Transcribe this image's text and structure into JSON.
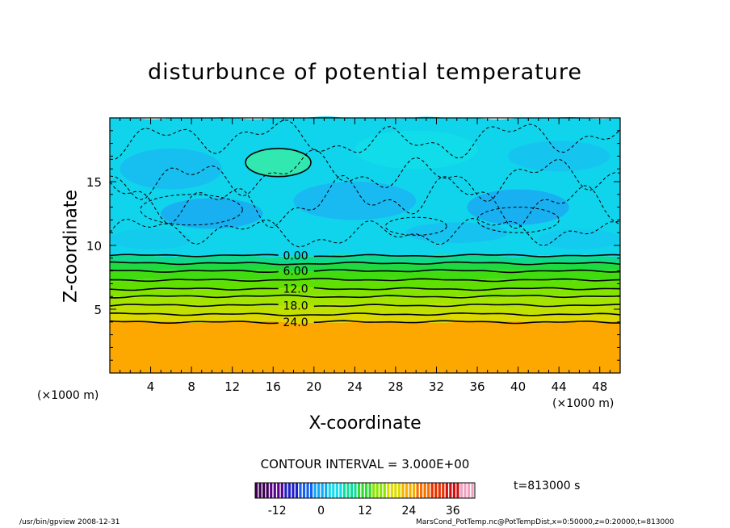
{
  "chart_data": {
    "type": "heatmap",
    "title": "disturbunce of potential temperature",
    "xlabel": "X-coordinate",
    "ylabel": "Z-coordinate",
    "x_unit_left": "(×1000 m)",
    "x_unit_right": "(×1000 m)",
    "xlim": [
      0,
      50
    ],
    "ylim": [
      0,
      20
    ],
    "x_ticks": [
      4,
      8,
      12,
      16,
      20,
      24,
      28,
      32,
      36,
      40,
      44,
      48
    ],
    "y_ticks": [
      5,
      10,
      15
    ],
    "grid": false,
    "layers": [
      {
        "z_bottom": 0,
        "z_top": 4.0,
        "value": 27,
        "color": "#fca800"
      },
      {
        "z_bottom": 4.0,
        "z_top": 4.6,
        "value": 24,
        "color": "#dcd800"
      },
      {
        "z_bottom": 4.6,
        "z_top": 5.3,
        "value": 21,
        "color": "#c0e000"
      },
      {
        "z_bottom": 5.3,
        "z_top": 6.0,
        "value": 18,
        "color": "#a4e400"
      },
      {
        "z_bottom": 6.0,
        "z_top": 6.6,
        "value": 15,
        "color": "#84e400"
      },
      {
        "z_bottom": 6.6,
        "z_top": 7.3,
        "value": 12,
        "color": "#60e000"
      },
      {
        "z_bottom": 7.3,
        "z_top": 8.0,
        "value": 9,
        "color": "#40dc10"
      },
      {
        "z_bottom": 8.0,
        "z_top": 8.6,
        "value": 6,
        "color": "#20d840"
      },
      {
        "z_bottom": 8.6,
        "z_top": 9.2,
        "value": 3,
        "color": "#10d88c"
      },
      {
        "z_bottom": 9.2,
        "z_top": 20,
        "value": -3,
        "color": "#10d4ec"
      }
    ],
    "contours": [
      {
        "level": 0.0,
        "z": 9.2,
        "label": "0.00"
      },
      {
        "level": 3.0,
        "z": 8.6,
        "label": ""
      },
      {
        "level": 6.0,
        "z": 8.0,
        "label": "6.00"
      },
      {
        "level": 9.0,
        "z": 7.3,
        "label": ""
      },
      {
        "level": 12.0,
        "z": 6.6,
        "label": "12.0"
      },
      {
        "level": 15.0,
        "z": 6.0,
        "label": ""
      },
      {
        "level": 18.0,
        "z": 5.3,
        "label": "18.0"
      },
      {
        "level": 21.0,
        "z": 4.6,
        "label": ""
      },
      {
        "level": 24.0,
        "z": 4.0,
        "label": "24.0"
      }
    ],
    "features": [
      {
        "kind": "positive-anomaly",
        "x_center": 16.5,
        "z_center": 16.5,
        "x_radius": 3.2,
        "z_radius": 1.1,
        "level": 3.0
      },
      {
        "kind": "negative-anomaly",
        "x_center": 30,
        "z_center": 11.5,
        "x_radius": 3,
        "z_radius": 0.7,
        "level": -3.0
      },
      {
        "kind": "negative-anomaly",
        "x_center": 8,
        "z_center": 12.8,
        "x_radius": 5,
        "z_radius": 1.2,
        "level": -3.0
      },
      {
        "kind": "negative-anomaly",
        "x_center": 40,
        "z_center": 12.0,
        "x_radius": 4,
        "z_radius": 1.0,
        "level": -3.0
      }
    ],
    "contour_interval": "CONTOUR INTERVAL = 3.000E+00",
    "colorbar": {
      "min": -18,
      "max": 42,
      "tick_values": [
        -12,
        0,
        12,
        24,
        36
      ],
      "tick_labels": [
        "-12",
        "0",
        "12",
        "24",
        "36"
      ],
      "colors": [
        "#3c0050",
        "#5a0090",
        "#2020c8",
        "#1460f0",
        "#10a8f4",
        "#10dcec",
        "#10dc9c",
        "#30dc30",
        "#8ce400",
        "#dcdc00",
        "#f8b000",
        "#f87000",
        "#e83000",
        "#d01010",
        "#f0a0c0"
      ]
    }
  },
  "time_label": "t=813000 s",
  "footer_left": "/usr/bin/gpview   2008-12-31",
  "footer_right": "MarsCond_PotTemp.nc@PotTempDist,x=0:50000,z=0:20000,t=813000"
}
